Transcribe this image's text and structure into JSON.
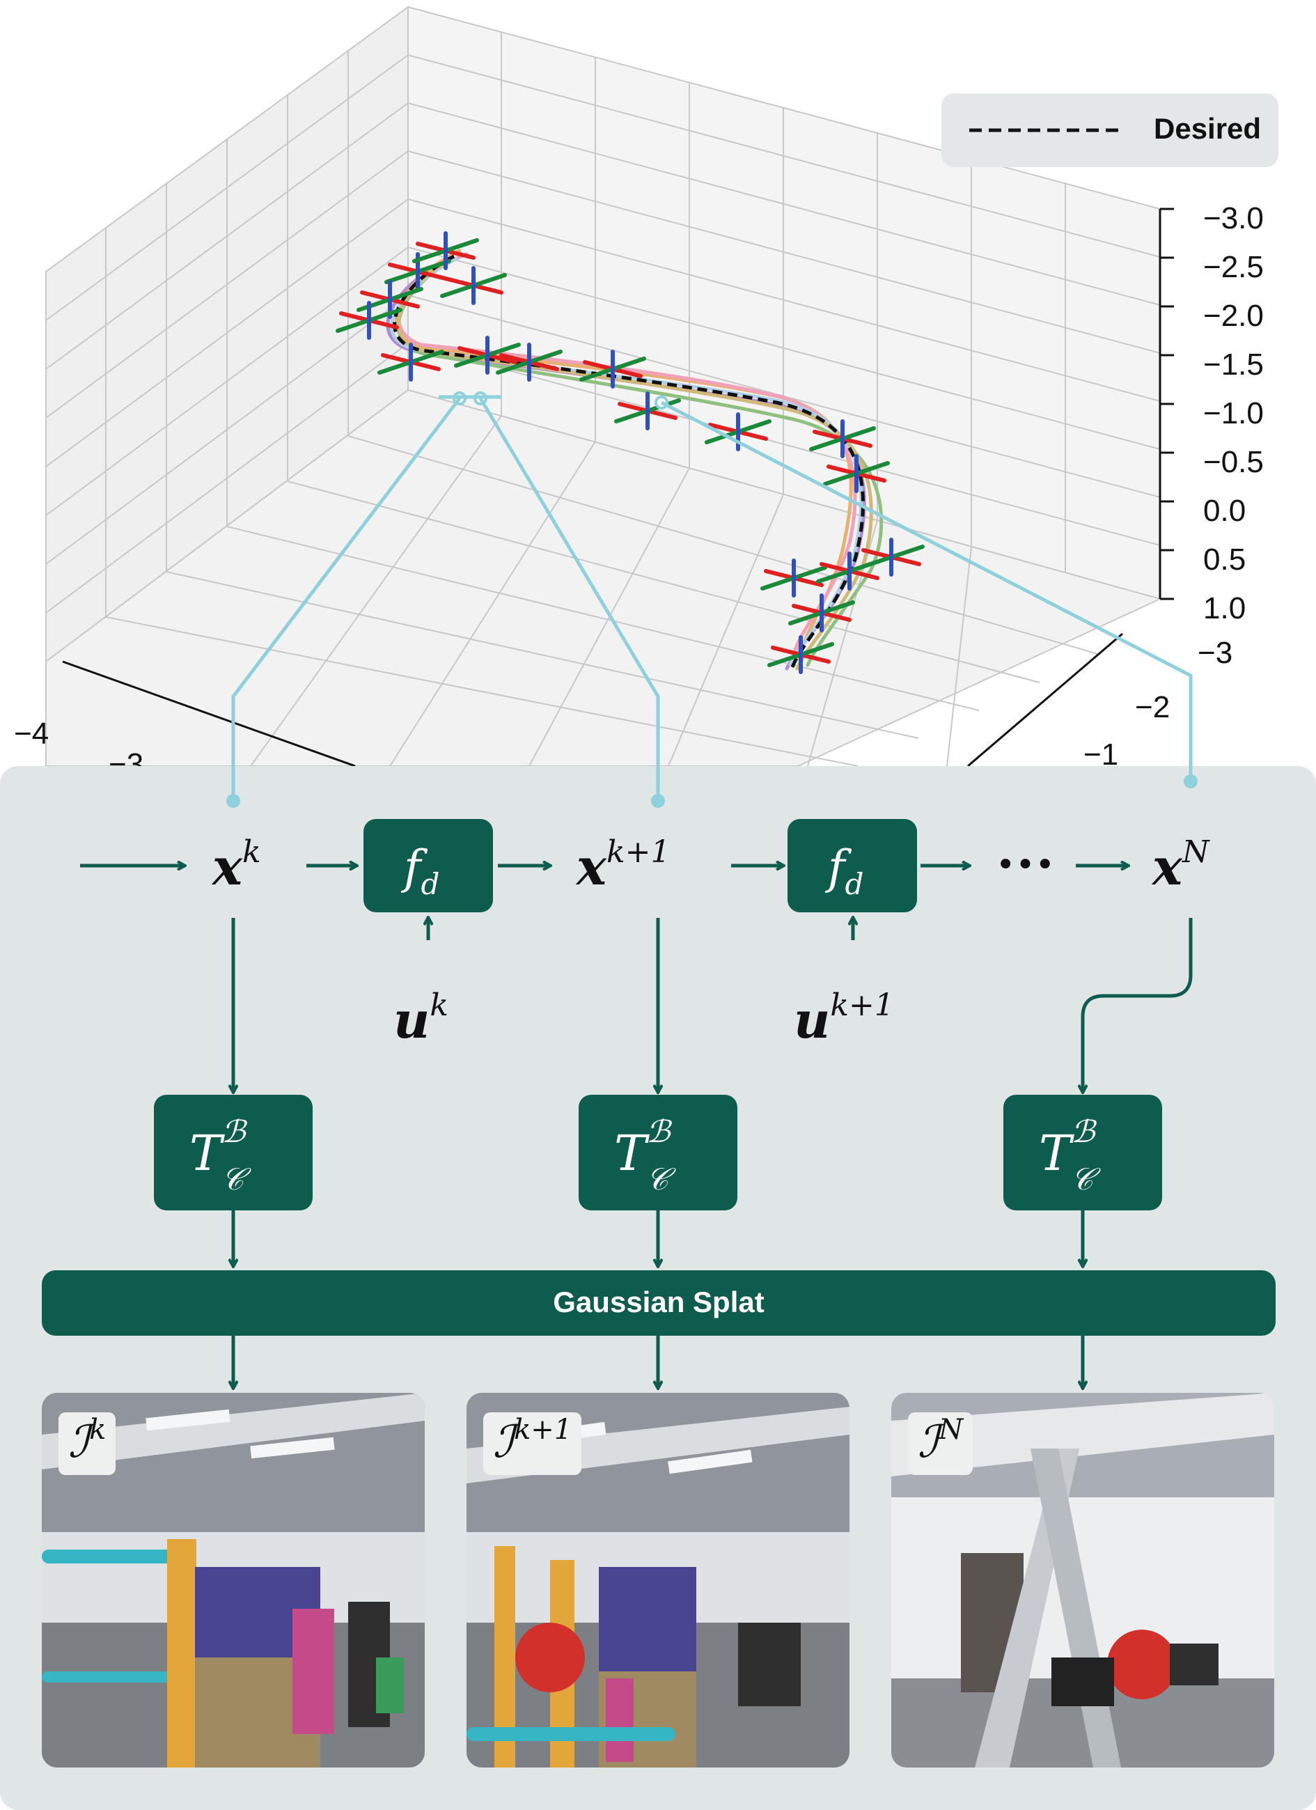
{
  "legend": {
    "label": "Desired"
  },
  "axes": {
    "z_ticks": [
      "−3.0",
      "−2.5",
      "−2.0",
      "−1.5",
      "−1.0",
      "−0.5",
      "0.0",
      "0.5",
      "1.0"
    ],
    "y_ticks": [
      "−3",
      "−2",
      "−1"
    ],
    "x_ticks": [
      "−4",
      "−3"
    ]
  },
  "nodes": {
    "x_k": "x",
    "x_k_sup": "k",
    "x_k1": "x",
    "x_k1_sup": "k+1",
    "x_N": "x",
    "x_N_sup": "N",
    "u_k": "u",
    "u_k_sup": "k",
    "u_k1": "u",
    "u_k1_sup": "k+1",
    "ellipsis": "•••"
  },
  "boxes": {
    "dynamics": "f",
    "dynamics_sub": "d",
    "transform": "T",
    "transform_sup": "ℬ",
    "transform_sub": "𝒞",
    "splat": "Gaussian Splat"
  },
  "images": [
    {
      "label": "ℐ",
      "sup": "k"
    },
    {
      "label": "ℐ",
      "sup": "k+1"
    },
    {
      "label": "ℐ",
      "sup": "N"
    }
  ],
  "colors": {
    "accent": "#0e5c4e",
    "panel": "#e0e5e5",
    "connector": "#8fd0dd",
    "desired": "#111111"
  }
}
